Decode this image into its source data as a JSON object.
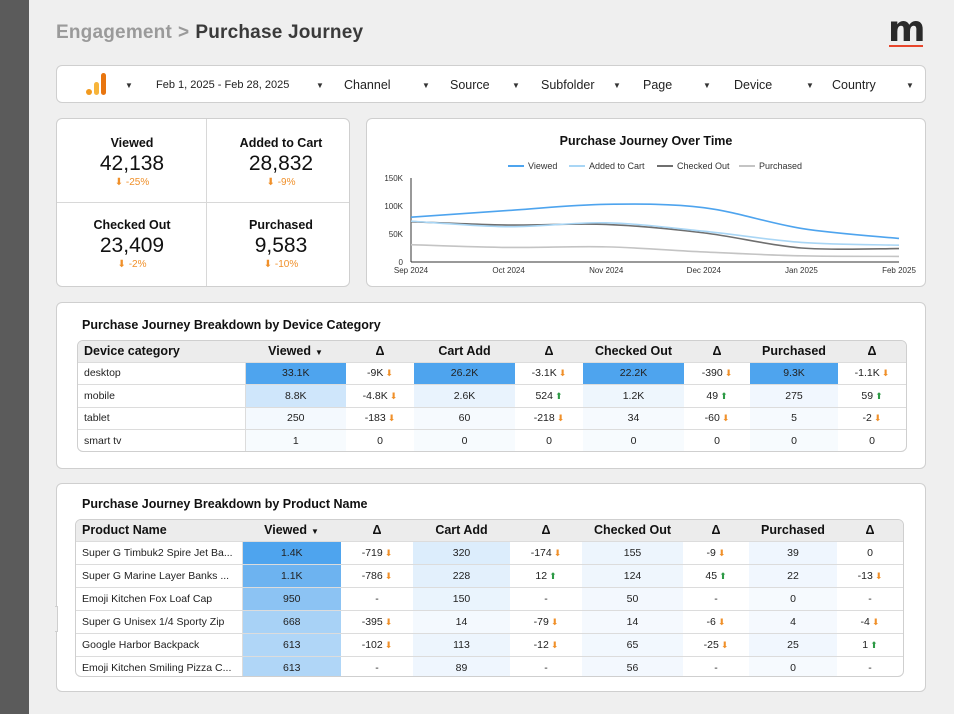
{
  "header": {
    "parent": "Engagement",
    "separator": ">",
    "current": "Purchase Journey"
  },
  "brand": {
    "logo_letter": "m",
    "accent": "#e8462c",
    "primary_blue": "#4ea4ee",
    "analytics_orange": "#f29a1f"
  },
  "filters": {
    "date_range": "Feb 1, 2025 - Feb 28, 2025",
    "items": [
      "Channel",
      "Source",
      "Subfolder",
      "Page",
      "Device",
      "Country"
    ]
  },
  "kpis": [
    {
      "title": "Viewed",
      "value": "42,138",
      "delta": "-25%"
    },
    {
      "title": "Added to Cart",
      "value": "28,832",
      "delta": "-9%"
    },
    {
      "title": "Checked Out",
      "value": "23,409",
      "delta": "-2%"
    },
    {
      "title": "Purchased",
      "value": "9,583",
      "delta": "-10%"
    }
  ],
  "chart_data": {
    "type": "line",
    "title": "Purchase Journey Over Time",
    "x": [
      "Sep 2024",
      "Oct 2024",
      "Nov 2024",
      "Dec 2024",
      "Jan 2025",
      "Feb 2025"
    ],
    "ylim": [
      0,
      150000
    ],
    "yticks": [
      "150K",
      "100K",
      "50K",
      "0"
    ],
    "ytick_values": [
      150000,
      100000,
      50000,
      0
    ],
    "legend_position": "top",
    "series": [
      {
        "name": "Viewed",
        "color": "#4ea4ee",
        "values": [
          80000,
          92000,
          103000,
          97000,
          60000,
          42000
        ]
      },
      {
        "name": "Added to Cart",
        "color": "#a9d6f5",
        "values": [
          73000,
          63000,
          70000,
          55000,
          35000,
          30000
        ]
      },
      {
        "name": "Checked Out",
        "color": "#6f6f6f",
        "values": [
          72000,
          66000,
          67000,
          52000,
          25000,
          24000
        ]
      },
      {
        "name": "Purchased",
        "color": "#c4c4c4",
        "values": [
          31000,
          26000,
          27000,
          18000,
          11000,
          10000
        ]
      }
    ]
  },
  "device_table": {
    "title": "Purchase Journey Breakdown by Device Category",
    "headers": [
      "Device category",
      "Viewed",
      "Δ",
      "Cart Add",
      "Δ",
      "Checked Out",
      "Δ",
      "Purchased",
      "Δ"
    ],
    "sort_icon": "▼",
    "rows": [
      {
        "name": "desktop",
        "cells": [
          {
            "v": "33.1K",
            "bg": "#4ea4ee"
          },
          {
            "v": "-9K",
            "d": "down"
          },
          {
            "v": "26.2K",
            "bg": "#4ea4ee"
          },
          {
            "v": "-3.1K",
            "d": "down"
          },
          {
            "v": "22.2K",
            "bg": "#4ea4ee"
          },
          {
            "v": "-390",
            "d": "down"
          },
          {
            "v": "9.3K",
            "bg": "#4ea4ee"
          },
          {
            "v": "-1.1K",
            "d": "down"
          }
        ]
      },
      {
        "name": "mobile",
        "cells": [
          {
            "v": "8.8K",
            "bg": "#cfe6fb"
          },
          {
            "v": "-4.8K",
            "d": "down"
          },
          {
            "v": "2.6K",
            "bg": "#e9f3fd"
          },
          {
            "v": "524",
            "d": "up"
          },
          {
            "v": "1.2K",
            "bg": "#eef6fd"
          },
          {
            "v": "49",
            "d": "up"
          },
          {
            "v": "275",
            "bg": "#f1f7fe"
          },
          {
            "v": "59",
            "d": "up"
          }
        ]
      },
      {
        "name": "tablet",
        "cells": [
          {
            "v": "250",
            "bg": "#f4f9fe"
          },
          {
            "v": "-183",
            "d": "down"
          },
          {
            "v": "60",
            "bg": "#f6fafe"
          },
          {
            "v": "-218",
            "d": "down"
          },
          {
            "v": "34",
            "bg": "#f6fafe"
          },
          {
            "v": "-60",
            "d": "down"
          },
          {
            "v": "5",
            "bg": "#f6fafe"
          },
          {
            "v": "-2",
            "d": "down"
          }
        ]
      },
      {
        "name": "smart tv",
        "cells": [
          {
            "v": "1",
            "bg": "#f7fbfe"
          },
          {
            "v": "0"
          },
          {
            "v": "0",
            "bg": "#f7fbfe"
          },
          {
            "v": "0"
          },
          {
            "v": "0",
            "bg": "#f7fbfe"
          },
          {
            "v": "0"
          },
          {
            "v": "0",
            "bg": "#f7fbfe"
          },
          {
            "v": "0"
          }
        ]
      }
    ]
  },
  "product_table": {
    "title": "Purchase Journey Breakdown by Product Name",
    "headers": [
      "Product Name",
      "Viewed",
      "Δ",
      "Cart Add",
      "Δ",
      "Checked Out",
      "Δ",
      "Purchased",
      "Δ"
    ],
    "sort_icon": "▼",
    "rows": [
      {
        "name": "Super G Timbuk2 Spire Jet Ba...",
        "cells": [
          {
            "v": "1.4K",
            "bg": "#4ea4ee"
          },
          {
            "v": "-719",
            "d": "down"
          },
          {
            "v": "320",
            "bg": "#dcedfc"
          },
          {
            "v": "-174",
            "d": "down"
          },
          {
            "v": "155",
            "bg": "#edf5fd"
          },
          {
            "v": "-9",
            "d": "down"
          },
          {
            "v": "39",
            "bg": "#eff6fe"
          },
          {
            "v": "0"
          }
        ]
      },
      {
        "name": "Super G Marine Layer Banks ...",
        "cells": [
          {
            "v": "1.1K",
            "bg": "#6db3f0"
          },
          {
            "v": "-786",
            "d": "down"
          },
          {
            "v": "228",
            "bg": "#e3f0fc"
          },
          {
            "v": "12",
            "d": "up"
          },
          {
            "v": "124",
            "bg": "#eff6fd"
          },
          {
            "v": "45",
            "d": "up"
          },
          {
            "v": "22",
            "bg": "#f1f7fe"
          },
          {
            "v": "-13",
            "d": "down"
          }
        ]
      },
      {
        "name": "Emoji Kitchen Fox Loaf Cap",
        "cells": [
          {
            "v": "950",
            "bg": "#8cc3f3"
          },
          {
            "v": "-"
          },
          {
            "v": "150",
            "bg": "#eaf4fd"
          },
          {
            "v": "-"
          },
          {
            "v": "50",
            "bg": "#f3f8fe"
          },
          {
            "v": "-"
          },
          {
            "v": "0",
            "bg": "#f6fafe"
          },
          {
            "v": "-"
          }
        ]
      },
      {
        "name": "Super G Unisex 1/4 Sporty Zip",
        "cells": [
          {
            "v": "668",
            "bg": "#a8d2f6"
          },
          {
            "v": "-395",
            "d": "down"
          },
          {
            "v": "14",
            "bg": "#f4f9fe"
          },
          {
            "v": "-79",
            "d": "down"
          },
          {
            "v": "14",
            "bg": "#f5f9fe"
          },
          {
            "v": "-6",
            "d": "down"
          },
          {
            "v": "4",
            "bg": "#f5f9fe"
          },
          {
            "v": "-4",
            "d": "down"
          }
        ]
      },
      {
        "name": "Google Harbor Backpack",
        "cells": [
          {
            "v": "613",
            "bg": "#b0d6f7"
          },
          {
            "v": "-102",
            "d": "down"
          },
          {
            "v": "113",
            "bg": "#edf5fd"
          },
          {
            "v": "-12",
            "d": "down"
          },
          {
            "v": "65",
            "bg": "#f2f8fe"
          },
          {
            "v": "-25",
            "d": "down"
          },
          {
            "v": "25",
            "bg": "#f1f7fe"
          },
          {
            "v": "1",
            "d": "up"
          }
        ]
      },
      {
        "name": "Emoji Kitchen Smiling Pizza C...",
        "cells": [
          {
            "v": "613",
            "bg": "#b0d6f7"
          },
          {
            "v": "-"
          },
          {
            "v": "89",
            "bg": "#eff6fe"
          },
          {
            "v": "-"
          },
          {
            "v": "56",
            "bg": "#f3f8fe"
          },
          {
            "v": "-"
          },
          {
            "v": "0",
            "bg": "#f6fafe"
          },
          {
            "v": "-"
          }
        ]
      }
    ]
  }
}
